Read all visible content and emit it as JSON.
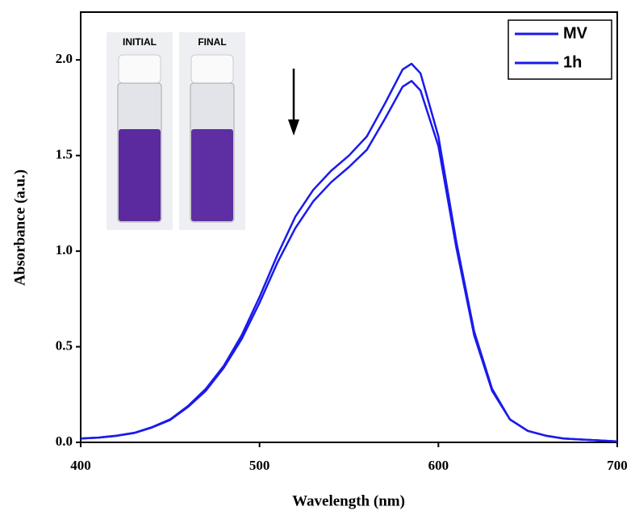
{
  "chart_data": {
    "type": "line",
    "x_label": "Wavelength (nm)",
    "y_label": "Absorbance (a.u.)",
    "annotations": [
      "INITIAL",
      "FINAL"
    ],
    "x": [
      400,
      410,
      420,
      430,
      440,
      450,
      460,
      470,
      480,
      490,
      500,
      510,
      520,
      530,
      540,
      550,
      560,
      570,
      580,
      585,
      590,
      600,
      610,
      620,
      630,
      640,
      650,
      660,
      670,
      680,
      690,
      700
    ],
    "series": [
      {
        "name": "MV",
        "color": "#1a1aeb",
        "values": [
          0.02,
          0.025,
          0.035,
          0.05,
          0.08,
          0.12,
          0.19,
          0.28,
          0.4,
          0.56,
          0.76,
          0.98,
          1.18,
          1.32,
          1.42,
          1.5,
          1.6,
          1.77,
          1.95,
          1.98,
          1.93,
          1.6,
          1.05,
          0.58,
          0.28,
          0.12,
          0.06,
          0.035,
          0.02,
          0.015,
          0.01,
          0.005
        ]
      },
      {
        "name": "1h",
        "color": "#1a1aeb",
        "values": [
          0.02,
          0.025,
          0.034,
          0.049,
          0.078,
          0.117,
          0.185,
          0.27,
          0.39,
          0.54,
          0.73,
          0.94,
          1.12,
          1.26,
          1.36,
          1.44,
          1.53,
          1.69,
          1.86,
          1.89,
          1.84,
          1.55,
          1.02,
          0.56,
          0.27,
          0.12,
          0.06,
          0.035,
          0.02,
          0.015,
          0.01,
          0.005
        ]
      }
    ],
    "xlim": [
      400,
      700
    ],
    "xticks": [
      400,
      500,
      600,
      700
    ],
    "ylim": [
      0,
      2.25
    ],
    "yticks": [
      {
        "value": 0,
        "label": "0.0"
      },
      0.5,
      {
        "value": 1,
        "label": "1.0"
      },
      1.5,
      {
        "value": 2,
        "label": "2.0"
      }
    ],
    "legend": "upper right"
  }
}
